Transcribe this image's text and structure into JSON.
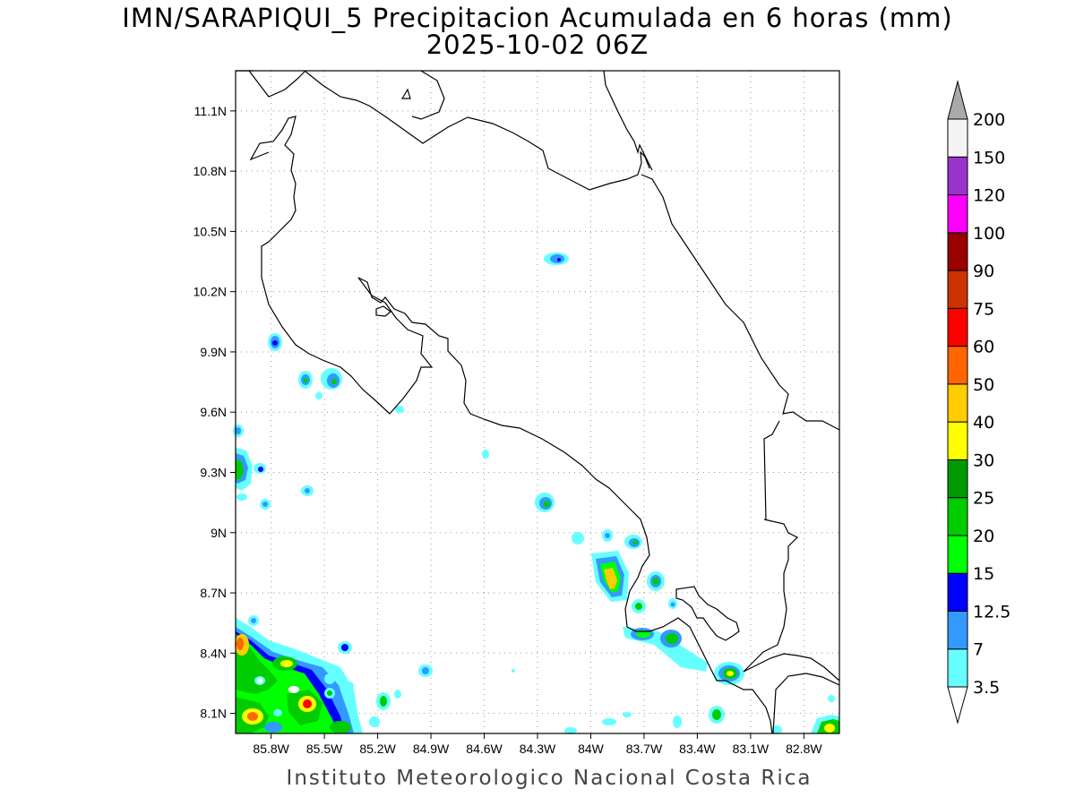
{
  "title": {
    "line1": "IMN/SARAPIQUI_5 Precipitacion Acumulada en 6 horas (mm)",
    "line2": "2025-10-02 06Z"
  },
  "credit": "Instituto Meteorologico Nacional Costa Rica",
  "map": {
    "lon_range": [
      -86.0,
      -82.6
    ],
    "lat_range": [
      8.0,
      11.3
    ],
    "x_ticks": [
      "85.8W",
      "85.5W",
      "85.2W",
      "84.9W",
      "84.6W",
      "84.3W",
      "84W",
      "83.7W",
      "83.4W",
      "83.1W",
      "82.8W"
    ],
    "y_ticks": [
      "11.1N",
      "10.8N",
      "10.5N",
      "10.2N",
      "9.9N",
      "9.6N",
      "9.3N",
      "9N",
      "8.7N",
      "8.4N",
      "8.1N"
    ],
    "grid": "dotted"
  },
  "colorbar": {
    "levels": [
      "3.5",
      "7",
      "12.5",
      "15",
      "20",
      "25",
      "30",
      "40",
      "50",
      "60",
      "75",
      "90",
      "100",
      "120",
      "150",
      "200"
    ],
    "colors": [
      "#66ffff",
      "#3399ff",
      "#0000ff",
      "#00ff00",
      "#00cc00",
      "#009900",
      "#ffff00",
      "#ffcc00",
      "#ff6600",
      "#ff0000",
      "#cc3300",
      "#990000",
      "#ff00ff",
      "#9933cc",
      "#f4f4f4",
      "#aaaaaa"
    ]
  }
}
